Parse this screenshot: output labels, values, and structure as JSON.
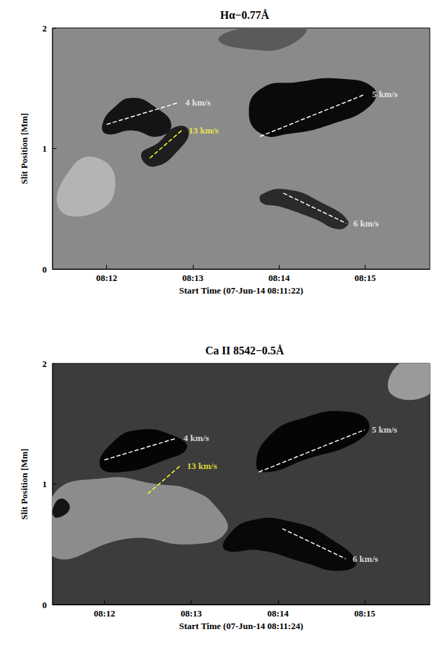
{
  "chart_data": [
    {
      "type": "line",
      "title": "Hα−0.77Å",
      "x_label": "Start Time (07-Jun-14 08:11:22)",
      "y_label": "Slit Position [Mm]",
      "xlim": [
        491.37,
        495.75
      ],
      "xticks": [
        {
          "value": 492,
          "label": "08:12"
        },
        {
          "value": 493,
          "label": "08:13"
        },
        {
          "value": 494,
          "label": "08:14"
        },
        {
          "value": 495,
          "label": "08:15"
        }
      ],
      "ylim": [
        0,
        2
      ],
      "yticks": [
        0,
        1,
        2
      ],
      "color": "#8a8a8a",
      "features": [
        {
          "color": "#b4b4b4",
          "points": [
            [
              491.45,
              0.5
            ],
            [
              491.6,
              0.85
            ],
            [
              491.9,
              0.92
            ],
            [
              492.1,
              0.72
            ],
            [
              491.9,
              0.48
            ]
          ]
        },
        {
          "color": "#5a5a5a",
          "points": [
            [
              493.3,
              1.9
            ],
            [
              493.6,
              2.0
            ],
            [
              494.3,
              2.0
            ],
            [
              494.1,
              1.85
            ],
            [
              493.7,
              1.82
            ]
          ]
        },
        {
          "color": "#141414",
          "points": [
            [
              491.95,
              1.2
            ],
            [
              492.1,
              1.35
            ],
            [
              492.3,
              1.42
            ],
            [
              492.55,
              1.35
            ],
            [
              492.75,
              1.2
            ],
            [
              492.6,
              1.1
            ],
            [
              492.3,
              1.15
            ],
            [
              492.0,
              1.12
            ]
          ]
        },
        {
          "color": "#1e1e1e",
          "points": [
            [
              492.4,
              0.95
            ],
            [
              492.55,
              0.85
            ],
            [
              492.85,
              1.0
            ],
            [
              492.95,
              1.15
            ],
            [
              492.8,
              1.18
            ],
            [
              492.6,
              1.05
            ]
          ]
        },
        {
          "color": "#0a0a0a",
          "points": [
            [
              493.65,
              1.3
            ],
            [
              493.8,
              1.5
            ],
            [
              494.2,
              1.55
            ],
            [
              494.7,
              1.58
            ],
            [
              495.1,
              1.5
            ],
            [
              495.05,
              1.35
            ],
            [
              494.6,
              1.2
            ],
            [
              494.1,
              1.12
            ],
            [
              493.8,
              1.12
            ]
          ]
        },
        {
          "color": "#2a2a2a",
          "points": [
            [
              493.8,
              0.62
            ],
            [
              494.1,
              0.66
            ],
            [
              494.5,
              0.55
            ],
            [
              494.8,
              0.4
            ],
            [
              494.7,
              0.33
            ],
            [
              494.4,
              0.42
            ],
            [
              494.0,
              0.52
            ],
            [
              493.8,
              0.55
            ]
          ]
        }
      ],
      "annotations": [
        {
          "label": "4 km/s",
          "color": "#ffffff",
          "x": [
            492.0,
            492.83
          ],
          "y": [
            1.2,
            1.38
          ]
        },
        {
          "label": "13 km/s",
          "color": "#ffff33",
          "x": [
            492.5,
            492.87
          ],
          "y": [
            0.92,
            1.15
          ]
        },
        {
          "label": "5 km/s",
          "color": "#ffffff",
          "x": [
            493.78,
            495.0
          ],
          "y": [
            1.1,
            1.45
          ]
        },
        {
          "label": "6 km/s",
          "color": "#ffffff",
          "x": [
            494.05,
            494.78
          ],
          "y": [
            0.63,
            0.38
          ]
        }
      ]
    },
    {
      "type": "line",
      "title": "Ca II 8542−0.5Å",
      "x_label": "Start Time (07-Jun-14 08:11:24)",
      "y_label": "Slit Position [Mm]",
      "xlim": [
        491.4,
        495.75
      ],
      "xticks": [
        {
          "value": 492,
          "label": "08:12"
        },
        {
          "value": 493,
          "label": "08:13"
        },
        {
          "value": 494,
          "label": "08:14"
        },
        {
          "value": 495,
          "label": "08:15"
        }
      ],
      "ylim": [
        0,
        2
      ],
      "yticks": [
        0,
        1,
        2
      ],
      "color": "#3c3c3c",
      "features": [
        {
          "color": "#8c8c8c",
          "points": [
            [
              491.4,
              0.4
            ],
            [
              491.4,
              0.9
            ],
            [
              492.0,
              1.05
            ],
            [
              492.6,
              1.0
            ],
            [
              493.0,
              0.95
            ],
            [
              493.3,
              0.8
            ],
            [
              493.4,
              0.6
            ],
            [
              493.0,
              0.5
            ],
            [
              492.3,
              0.55
            ]
          ]
        },
        {
          "color": "#9a9a9a",
          "points": [
            [
              495.3,
              1.75
            ],
            [
              495.4,
              2.0
            ],
            [
              495.75,
              2.0
            ],
            [
              495.75,
              1.75
            ]
          ]
        },
        {
          "color": "#050505",
          "points": [
            [
              491.95,
              1.15
            ],
            [
              492.1,
              1.35
            ],
            [
              492.4,
              1.45
            ],
            [
              492.8,
              1.4
            ],
            [
              492.95,
              1.3
            ],
            [
              492.7,
              1.2
            ],
            [
              492.2,
              1.1
            ]
          ]
        },
        {
          "color": "#050505",
          "points": [
            [
              493.75,
              1.15
            ],
            [
              493.9,
              1.4
            ],
            [
              494.3,
              1.55
            ],
            [
              494.8,
              1.6
            ],
            [
              495.05,
              1.5
            ],
            [
              494.9,
              1.35
            ],
            [
              494.3,
              1.2
            ],
            [
              493.9,
              1.1
            ]
          ]
        },
        {
          "color": "#080808",
          "points": [
            [
              493.4,
              0.55
            ],
            [
              493.7,
              0.7
            ],
            [
              494.2,
              0.68
            ],
            [
              494.6,
              0.55
            ],
            [
              494.9,
              0.35
            ],
            [
              494.7,
              0.28
            ],
            [
              494.3,
              0.35
            ],
            [
              493.8,
              0.45
            ],
            [
              493.4,
              0.45
            ]
          ]
        },
        {
          "color": "#141414",
          "points": [
            [
              491.4,
              0.78
            ],
            [
              491.5,
              0.88
            ],
            [
              491.6,
              0.8
            ],
            [
              491.45,
              0.72
            ]
          ]
        }
      ],
      "annotations": [
        {
          "label": "4 km/s",
          "color": "#ffffff",
          "x": [
            492.0,
            492.83
          ],
          "y": [
            1.2,
            1.38
          ]
        },
        {
          "label": "13 km/s",
          "color": "#ffff33",
          "x": [
            492.5,
            492.87
          ],
          "y": [
            0.92,
            1.15
          ]
        },
        {
          "label": "5 km/s",
          "color": "#ffffff",
          "x": [
            493.78,
            495.0
          ],
          "y": [
            1.1,
            1.45
          ]
        },
        {
          "label": "6 km/s",
          "color": "#ffffff",
          "x": [
            494.05,
            494.78
          ],
          "y": [
            0.63,
            0.38
          ]
        }
      ]
    }
  ]
}
